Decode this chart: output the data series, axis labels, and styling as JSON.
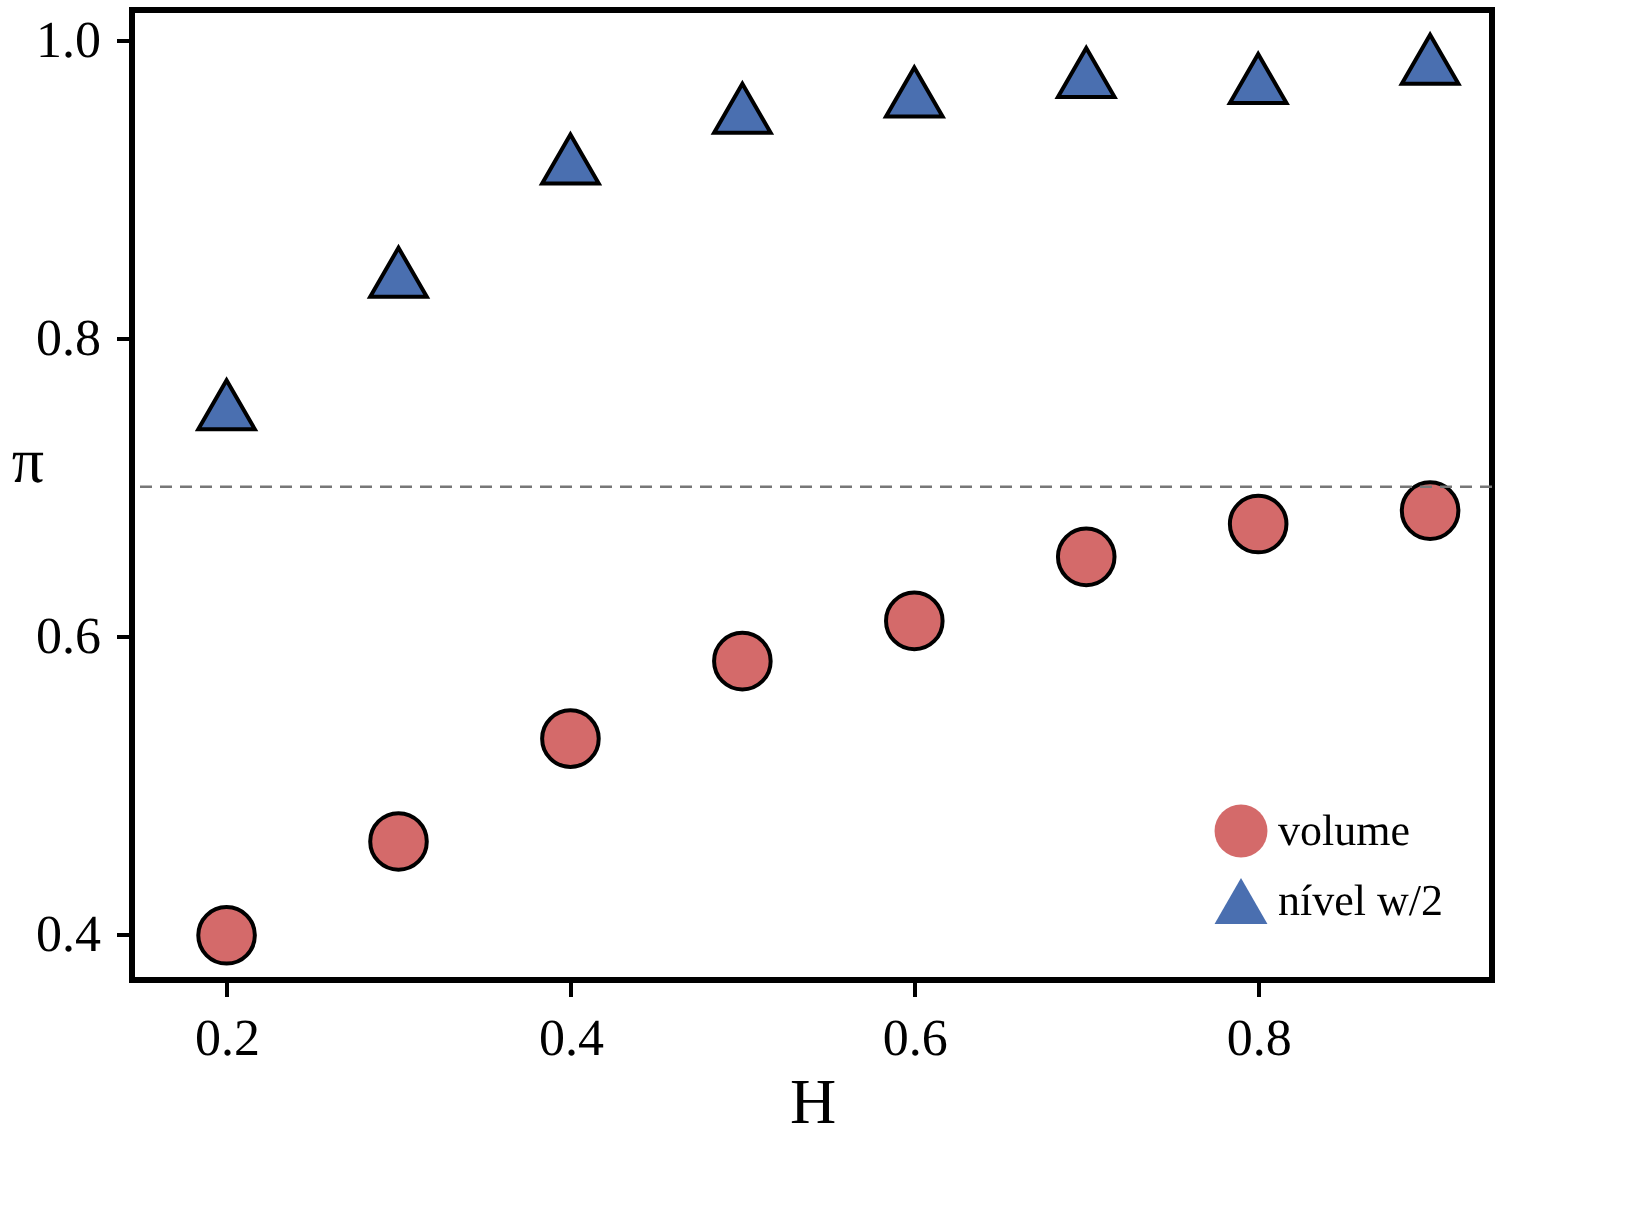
{
  "chart_data": {
    "type": "scatter",
    "xlabel": "H",
    "ylabel": "π",
    "x": [
      0.2,
      0.3,
      0.4,
      0.5,
      0.6,
      0.7,
      0.8,
      0.9
    ],
    "series": [
      {
        "name": "volume",
        "color": "#d46a6a",
        "marker": "circle",
        "values": [
          0.399,
          0.462,
          0.531,
          0.583,
          0.61,
          0.653,
          0.675,
          0.684
        ]
      },
      {
        "name": "nível w/2",
        "color": "#4a6fb0",
        "marker": "triangle",
        "values": [
          0.755,
          0.844,
          0.92,
          0.954,
          0.965,
          0.978,
          0.974,
          0.987
        ]
      }
    ],
    "xlim": [
      0.145,
      0.936
    ],
    "ylim": [
      0.369,
      1.02
    ],
    "xticks": [
      0.2,
      0.4,
      0.6,
      0.8
    ],
    "yticks": [
      0.4,
      0.6,
      0.8,
      {
        "value": 1,
        "label": "1.0"
      }
    ],
    "ref_lines": [
      {
        "axis": "y",
        "value": 0.7,
        "color": "#777777",
        "line_style": "dashed"
      }
    ],
    "grid": false,
    "legend": "bottom right"
  }
}
